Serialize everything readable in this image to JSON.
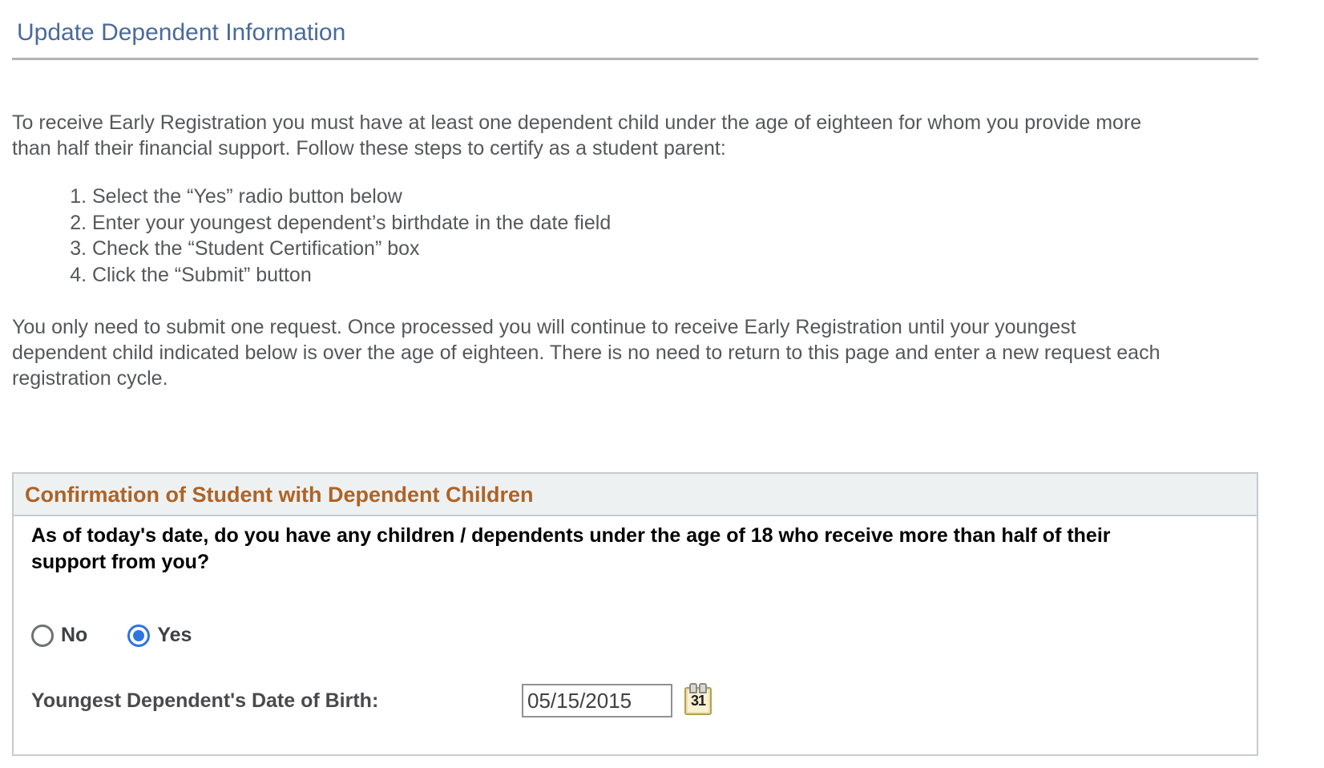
{
  "page": {
    "title": "Update Dependent Information"
  },
  "intro": {
    "paragraph1": "To receive Early Registration you must have at least one dependent child under the age of eighteen for whom you provide more than half their financial support. Follow these steps to certify as a student parent:",
    "steps": [
      "Select the “Yes” radio button below",
      "Enter your youngest dependent’s birthdate in the date field",
      "Check the “Student Certification” box",
      "Click the “Submit” button"
    ],
    "paragraph2": "You only need to submit one request. Once processed you will continue to receive Early Registration until your youngest dependent child indicated below is over the age of eighteen. There is no need to return to this page and enter a new request each registration cycle."
  },
  "confirmation": {
    "header": "Confirmation of Student with Dependent Children",
    "question": "As of today's date, do you have any children / dependents under the age of 18 who receive more than half of their support from you?",
    "radio": {
      "no_label": "No",
      "yes_label": "Yes",
      "selected_value": "Yes"
    },
    "dob": {
      "label": "Youngest Dependent's Date of Birth:",
      "value": "05/15/2015",
      "calendar_day": "31"
    }
  },
  "colors": {
    "title_text": "#4a6a9c",
    "body_text": "#565759",
    "section_header_text": "#ae6325",
    "section_header_bg": "#eef1f2",
    "box_border": "#c6cbd0",
    "radio_selected": "#2e74e4"
  }
}
